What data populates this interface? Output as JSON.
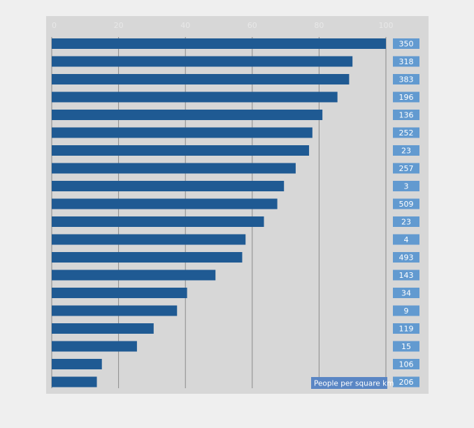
{
  "chart_data": {
    "type": "bar",
    "orientation": "horizontal",
    "title": "",
    "xlabel": "",
    "ylabel": "",
    "xlim": [
      0,
      100
    ],
    "x_ticks": [
      "0",
      "20",
      "40",
      "60",
      "80",
      "100"
    ],
    "grid": true,
    "unit_label": "People per square km",
    "series": [
      {
        "values": [
          100,
          90,
          89,
          85.5,
          81,
          78,
          77,
          73,
          69.5,
          67.5,
          63.5,
          58,
          57,
          49,
          40.5,
          37.5,
          30.5,
          25.5,
          15,
          13.5
        ]
      }
    ],
    "value_labels": [
      "350",
      "318",
      "383",
      "196",
      "136",
      "252",
      "23",
      "257",
      "3",
      "509",
      "23",
      "4",
      "493",
      "143",
      "34",
      "9",
      "119",
      "15",
      "106",
      "206"
    ]
  },
  "colors": {
    "panel_background": "#d7d7d7",
    "bar": "#1f5a93",
    "value_box": "#4e8fcf",
    "grid": "#8a8a8a"
  }
}
